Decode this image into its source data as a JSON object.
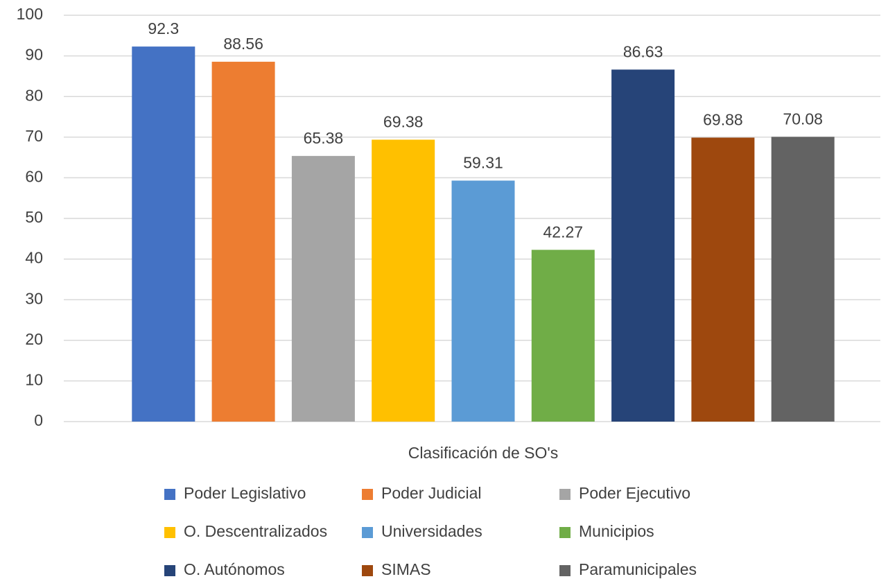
{
  "chart_data": {
    "type": "bar",
    "categories": [
      "Clasificación de SO's"
    ],
    "series": [
      {
        "name": "Poder Legislativo",
        "color": "#4472c4",
        "values": [
          92.3
        ]
      },
      {
        "name": "Poder Judicial",
        "color": "#ed7d31",
        "values": [
          88.56
        ]
      },
      {
        "name": "Poder Ejecutivo",
        "color": "#a5a5a5",
        "values": [
          65.38
        ]
      },
      {
        "name": "O. Descentralizados",
        "color": "#ffc000",
        "values": [
          69.38
        ]
      },
      {
        "name": "Universidades",
        "color": "#5b9bd5",
        "values": [
          59.31
        ]
      },
      {
        "name": "Municipios",
        "color": "#70ad47",
        "values": [
          42.27
        ]
      },
      {
        "name": "O. Autónomos",
        "color": "#264478",
        "values": [
          86.63
        ]
      },
      {
        "name": "SIMAS",
        "color": "#9e480e",
        "values": [
          69.88
        ]
      },
      {
        "name": "Paramunicipales",
        "color": "#636363",
        "values": [
          70.08
        ]
      }
    ],
    "ylim": [
      0,
      100
    ],
    "yticks": [
      0,
      10,
      20,
      30,
      40,
      50,
      60,
      70,
      80,
      90,
      100
    ],
    "grid": true,
    "legend": "bottom"
  }
}
